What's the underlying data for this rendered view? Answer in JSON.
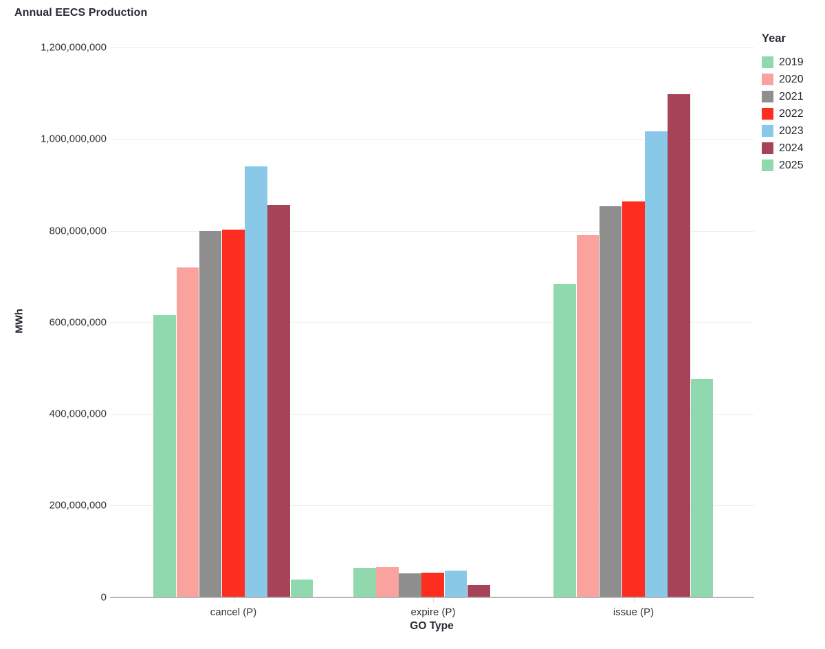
{
  "header": {
    "title": "Annual EECS Production"
  },
  "chart_data": {
    "type": "bar",
    "title": "Annual EECS Production",
    "xlabel": "GO Type",
    "ylabel": "MWh",
    "categories": [
      "cancel (P)",
      "expire (P)",
      "issue (P)"
    ],
    "series": [
      {
        "name": "2019",
        "color": "#90D9AE",
        "values": [
          616000000,
          64000000,
          684000000
        ]
      },
      {
        "name": "2020",
        "color": "#F9A29E",
        "values": [
          719000000,
          66000000,
          790000000
        ]
      },
      {
        "name": "2021",
        "color": "#8E8E8E",
        "values": [
          799000000,
          52000000,
          854000000
        ]
      },
      {
        "name": "2022",
        "color": "#FD2E1F",
        "values": [
          803000000,
          54000000,
          864000000
        ]
      },
      {
        "name": "2023",
        "color": "#8AC8E8",
        "values": [
          940000000,
          58000000,
          1017000000
        ]
      },
      {
        "name": "2024",
        "color": "#A74358",
        "values": [
          857000000,
          27000000,
          1098000000
        ]
      },
      {
        "name": "2025",
        "color": "#90D9AE",
        "values": [
          38000000,
          0,
          477000000
        ]
      }
    ],
    "ylim": [
      0,
      1200000000
    ],
    "y_tick_step": 200000000,
    "y_tick_labels": [
      "0",
      "200,000,000",
      "400,000,000",
      "600,000,000",
      "800,000,000",
      "1,000,000,000",
      "1,200,000,000"
    ],
    "grid": true,
    "legend": {
      "title": "Year",
      "position": "right"
    }
  }
}
